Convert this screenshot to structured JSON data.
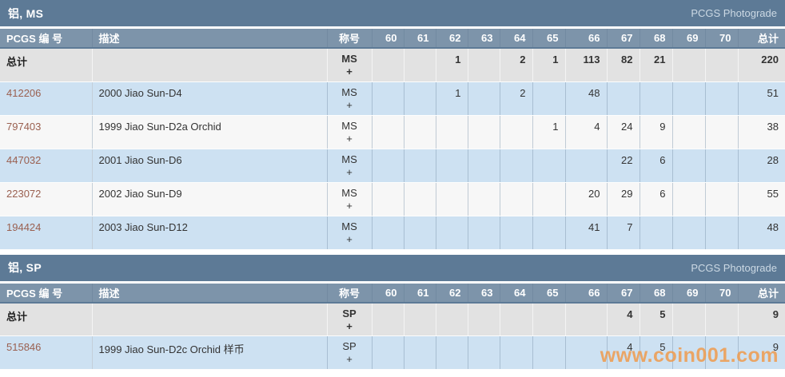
{
  "columns": {
    "number": "PCGS 编 号",
    "description": "描述",
    "designation": "称号",
    "grades": [
      "60",
      "61",
      "62",
      "63",
      "64",
      "65",
      "66",
      "67",
      "68",
      "69",
      "70"
    ],
    "total": "总计"
  },
  "sections": [
    {
      "title": "铝, MS",
      "photograde": "PCGS Photograde",
      "total_row": {
        "number_label": "总计",
        "description": "",
        "designation": "MS +",
        "grades": [
          "",
          "",
          "1",
          "",
          "2",
          "1",
          "113",
          "82",
          "21",
          "",
          ""
        ],
        "total": "220"
      },
      "rows": [
        {
          "number": "412206",
          "description": "2000 Jiao Sun-D4",
          "designation": "MS +",
          "grades": [
            "",
            "",
            "1",
            "",
            "2",
            "",
            "48",
            "",
            "",
            "",
            ""
          ],
          "total": "51"
        },
        {
          "number": "797403",
          "description": "1999 Jiao Sun-D2a Orchid",
          "designation": "MS +",
          "grades": [
            "",
            "",
            "",
            "",
            "",
            "1",
            "4",
            "24",
            "9",
            "",
            ""
          ],
          "total": "38"
        },
        {
          "number": "447032",
          "description": "2001 Jiao Sun-D6",
          "designation": "MS +",
          "grades": [
            "",
            "",
            "",
            "",
            "",
            "",
            "",
            "22",
            "6",
            "",
            ""
          ],
          "total": "28"
        },
        {
          "number": "223072",
          "description": "2002 Jiao Sun-D9",
          "designation": "MS +",
          "grades": [
            "",
            "",
            "",
            "",
            "",
            "",
            "20",
            "29",
            "6",
            "",
            ""
          ],
          "total": "55"
        },
        {
          "number": "194424",
          "description": "2003 Jiao Sun-D12",
          "designation": "MS +",
          "grades": [
            "",
            "",
            "",
            "",
            "",
            "",
            "41",
            "7",
            "",
            "",
            ""
          ],
          "total": "48"
        }
      ]
    },
    {
      "title": "铝, SP",
      "photograde": "PCGS Photograde",
      "total_row": {
        "number_label": "总计",
        "description": "",
        "designation": "SP +",
        "grades": [
          "",
          "",
          "",
          "",
          "",
          "",
          "",
          "4",
          "5",
          "",
          ""
        ],
        "total": "9"
      },
      "rows": [
        {
          "number": "515846",
          "description": "1999 Jiao Sun-D2c Orchid 样币",
          "designation": "SP +",
          "grades": [
            "",
            "",
            "",
            "",
            "",
            "",
            "",
            "4",
            "5",
            "",
            ""
          ],
          "total": "9"
        }
      ]
    }
  ],
  "watermark": {
    "text": "www.coin001.com"
  },
  "colors": {
    "section_bar": "#5d7a96",
    "table_header": "#7d94aa",
    "row_alt_blue": "#cde1f2",
    "row_alt_white": "#f7f7f7",
    "total_row_bg": "#e2e2e2",
    "pcgs_number_link": "#9a6050",
    "watermark": "#ee9a4c"
  }
}
